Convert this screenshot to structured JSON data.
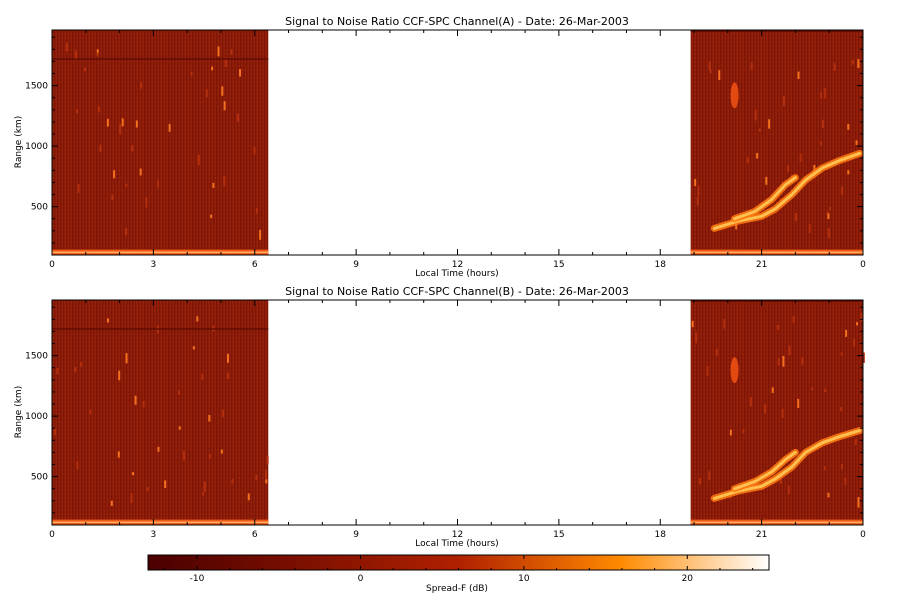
{
  "chart_data": [
    {
      "type": "heatmap",
      "title": "Signal to Noise Ratio CCF-SPC Channel(A) - Date: 26-Mar-2003",
      "xlabel": "Local Time (hours)",
      "ylabel": "Range (km)",
      "x_ticks": [
        "0",
        "3",
        "6",
        "9",
        "12",
        "15",
        "18",
        "21",
        "0"
      ],
      "y_ticks": [
        "500",
        "1000",
        "1500"
      ],
      "xlim": [
        0,
        24
      ],
      "ylim": [
        100,
        1960
      ],
      "data_intervals_hours": [
        [
          0,
          6.4
        ],
        [
          18.9,
          24
        ]
      ],
      "features": [
        {
          "kind": "horizontal_band",
          "range_km": 120,
          "from": 0,
          "to": 24,
          "strength": "strong"
        },
        {
          "kind": "horizontal_line",
          "range_km": 1720,
          "from": 0,
          "to": 6.4
        },
        {
          "kind": "horizontal_line",
          "range_km": 1950,
          "from": 18.9,
          "to": 24
        },
        {
          "kind": "plume",
          "points": [
            [
              19.6,
              320
            ],
            [
              20.3,
              380
            ],
            [
              21.0,
              420
            ],
            [
              21.4,
              480
            ],
            [
              21.9,
              600
            ],
            [
              22.3,
              720
            ],
            [
              22.8,
              820
            ],
            [
              23.3,
              880
            ],
            [
              23.9,
              940
            ]
          ]
        },
        {
          "kind": "plume",
          "points": [
            [
              20.2,
              400
            ],
            [
              20.8,
              460
            ],
            [
              21.3,
              560
            ],
            [
              21.7,
              680
            ],
            [
              22.0,
              740
            ]
          ]
        },
        {
          "kind": "blob",
          "x": 20.2,
          "y": 1420
        }
      ]
    },
    {
      "type": "heatmap",
      "title": "Signal to Noise Ratio CCF-SPC Channel(B) - Date: 26-Mar-2003",
      "xlabel": "Local Time (hours)",
      "ylabel": "Range (km)",
      "x_ticks": [
        "0",
        "3",
        "6",
        "9",
        "12",
        "15",
        "18",
        "21",
        "0"
      ],
      "y_ticks": [
        "500",
        "1000",
        "1500"
      ],
      "xlim": [
        0,
        24
      ],
      "ylim": [
        100,
        1960
      ],
      "data_intervals_hours": [
        [
          0,
          6.4
        ],
        [
          18.9,
          24
        ]
      ],
      "features": [
        {
          "kind": "horizontal_band",
          "range_km": 120,
          "from": 0,
          "to": 24,
          "strength": "strong"
        },
        {
          "kind": "horizontal_line",
          "range_km": 1720,
          "from": 0,
          "to": 6.4
        },
        {
          "kind": "horizontal_line",
          "range_km": 1950,
          "from": 18.9,
          "to": 24
        },
        {
          "kind": "plume",
          "points": [
            [
              19.6,
              320
            ],
            [
              20.3,
              380
            ],
            [
              21.0,
              420
            ],
            [
              21.4,
              480
            ],
            [
              21.9,
              580
            ],
            [
              22.3,
              700
            ],
            [
              22.8,
              780
            ],
            [
              23.3,
              830
            ],
            [
              23.9,
              880
            ]
          ]
        },
        {
          "kind": "plume",
          "points": [
            [
              20.2,
              400
            ],
            [
              20.8,
              460
            ],
            [
              21.3,
              540
            ],
            [
              21.7,
              640
            ],
            [
              22.0,
              700
            ]
          ]
        },
        {
          "kind": "blob",
          "x": 20.2,
          "y": 1380
        }
      ]
    }
  ],
  "colorbar": {
    "label": "Spread-F (dB)",
    "ticks": [
      "-10",
      "0",
      "10",
      "20"
    ],
    "tick_values": [
      -10,
      0,
      10,
      20
    ],
    "range": [
      -13,
      25
    ],
    "colors": [
      "#4a0000",
      "#a01800",
      "#ff8000",
      "#ffffff"
    ]
  },
  "colors": {
    "background_field": "#8b1a08",
    "floor_band": "#e84010",
    "plume": "#ffa020",
    "plume_core": "#ffe090"
  }
}
